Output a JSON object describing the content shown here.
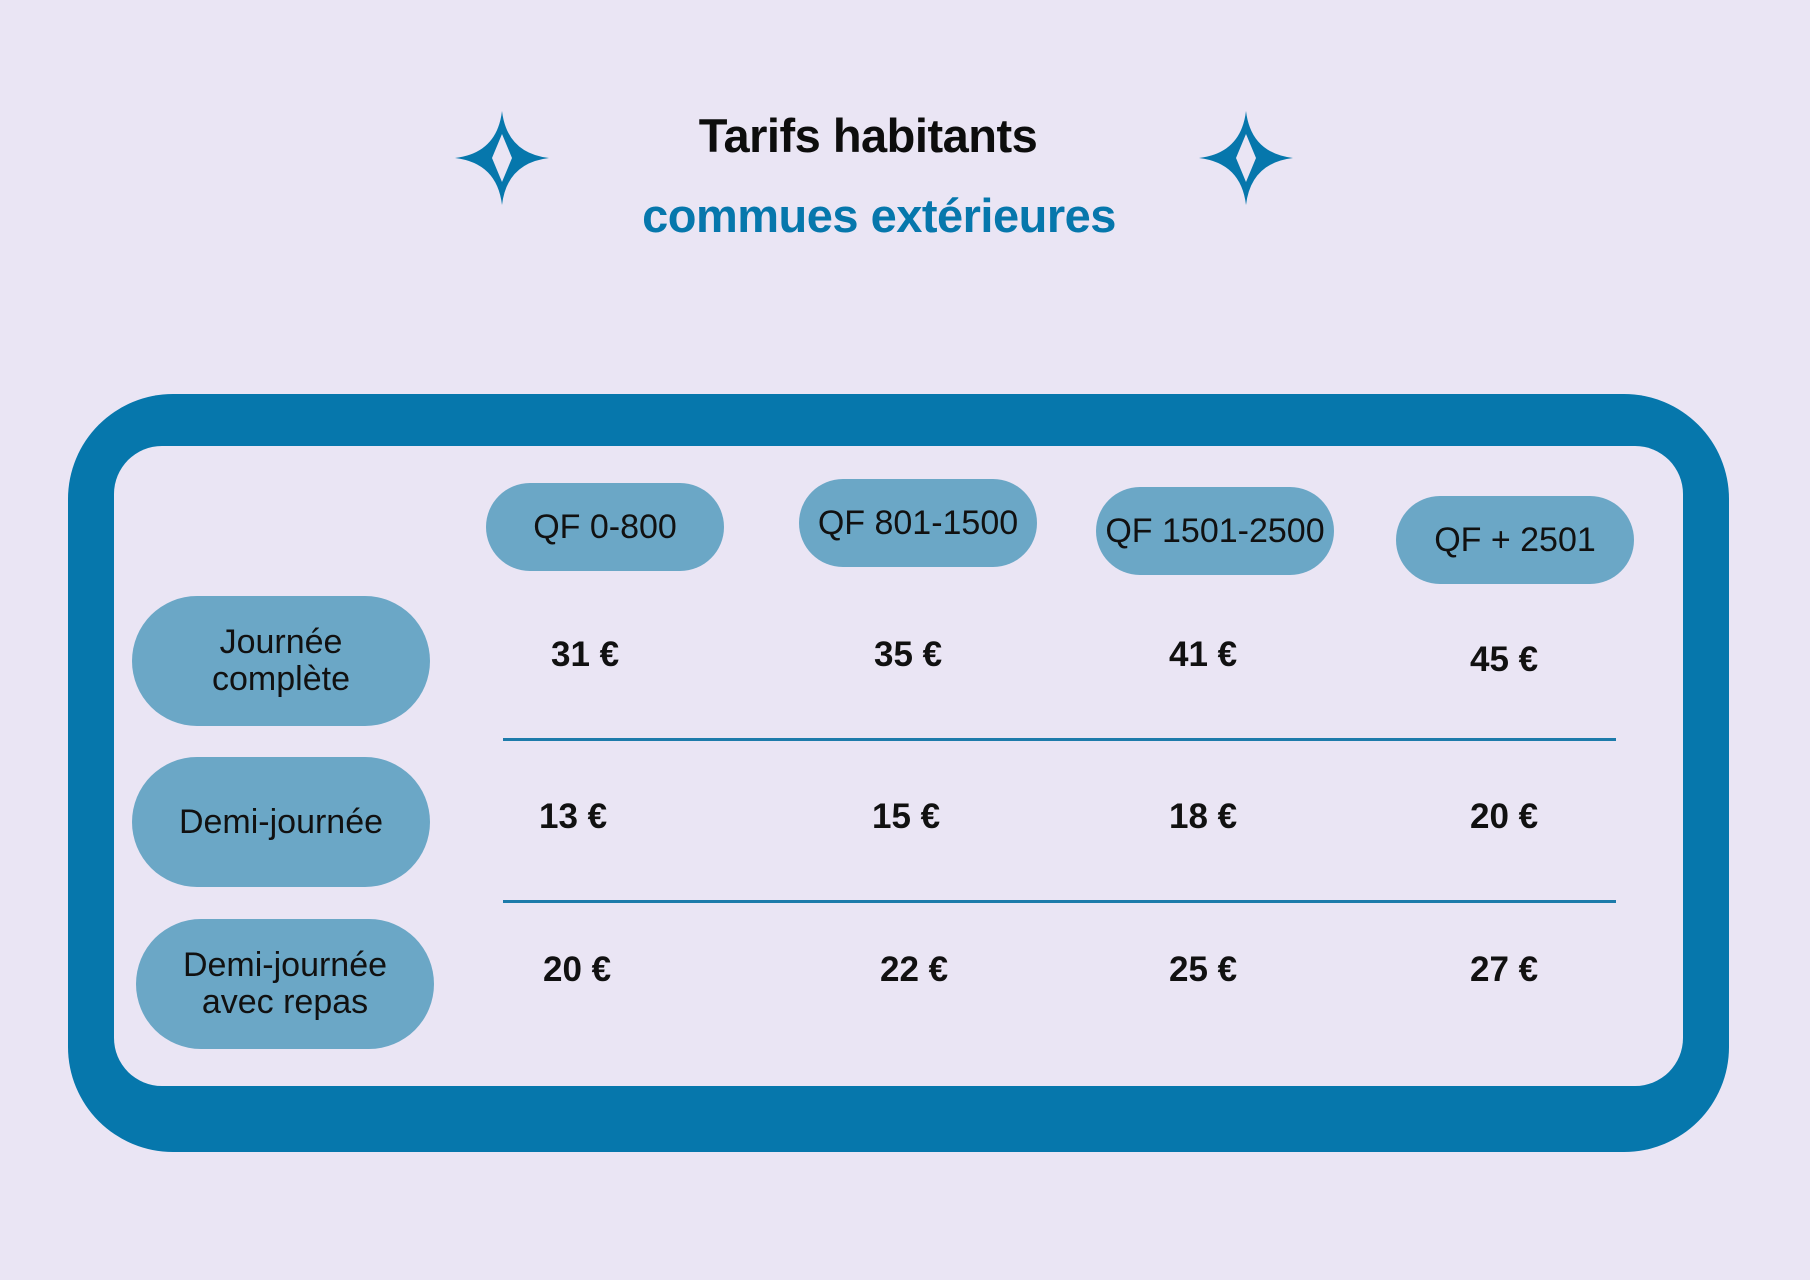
{
  "title": "Tarifs habitants",
  "subtitle": "commues extérieures",
  "colors": {
    "background": "#EAE5F4",
    "frame": "#0677AC",
    "pill": "#6BA7C6",
    "accent_text": "#0677AC",
    "divider": "#1D7BAA"
  },
  "icons": [
    "four-point-star-icon",
    "four-point-star-icon"
  ],
  "table": {
    "columns": [
      "QF 0-800",
      "QF 801-1500",
      "QF 1501-2500",
      "QF + 2501"
    ],
    "rows": [
      {
        "label": "Journée\ncomplète",
        "prices": [
          "31 €",
          "35 €",
          "41 €",
          "45 €"
        ]
      },
      {
        "label": "Demi-journée",
        "prices": [
          "13 €",
          "15 €",
          "18 €",
          "20 €"
        ]
      },
      {
        "label": "Demi-journée\navec repas",
        "prices": [
          "20 €",
          "22 €",
          "25 €",
          "27 €"
        ]
      }
    ]
  }
}
